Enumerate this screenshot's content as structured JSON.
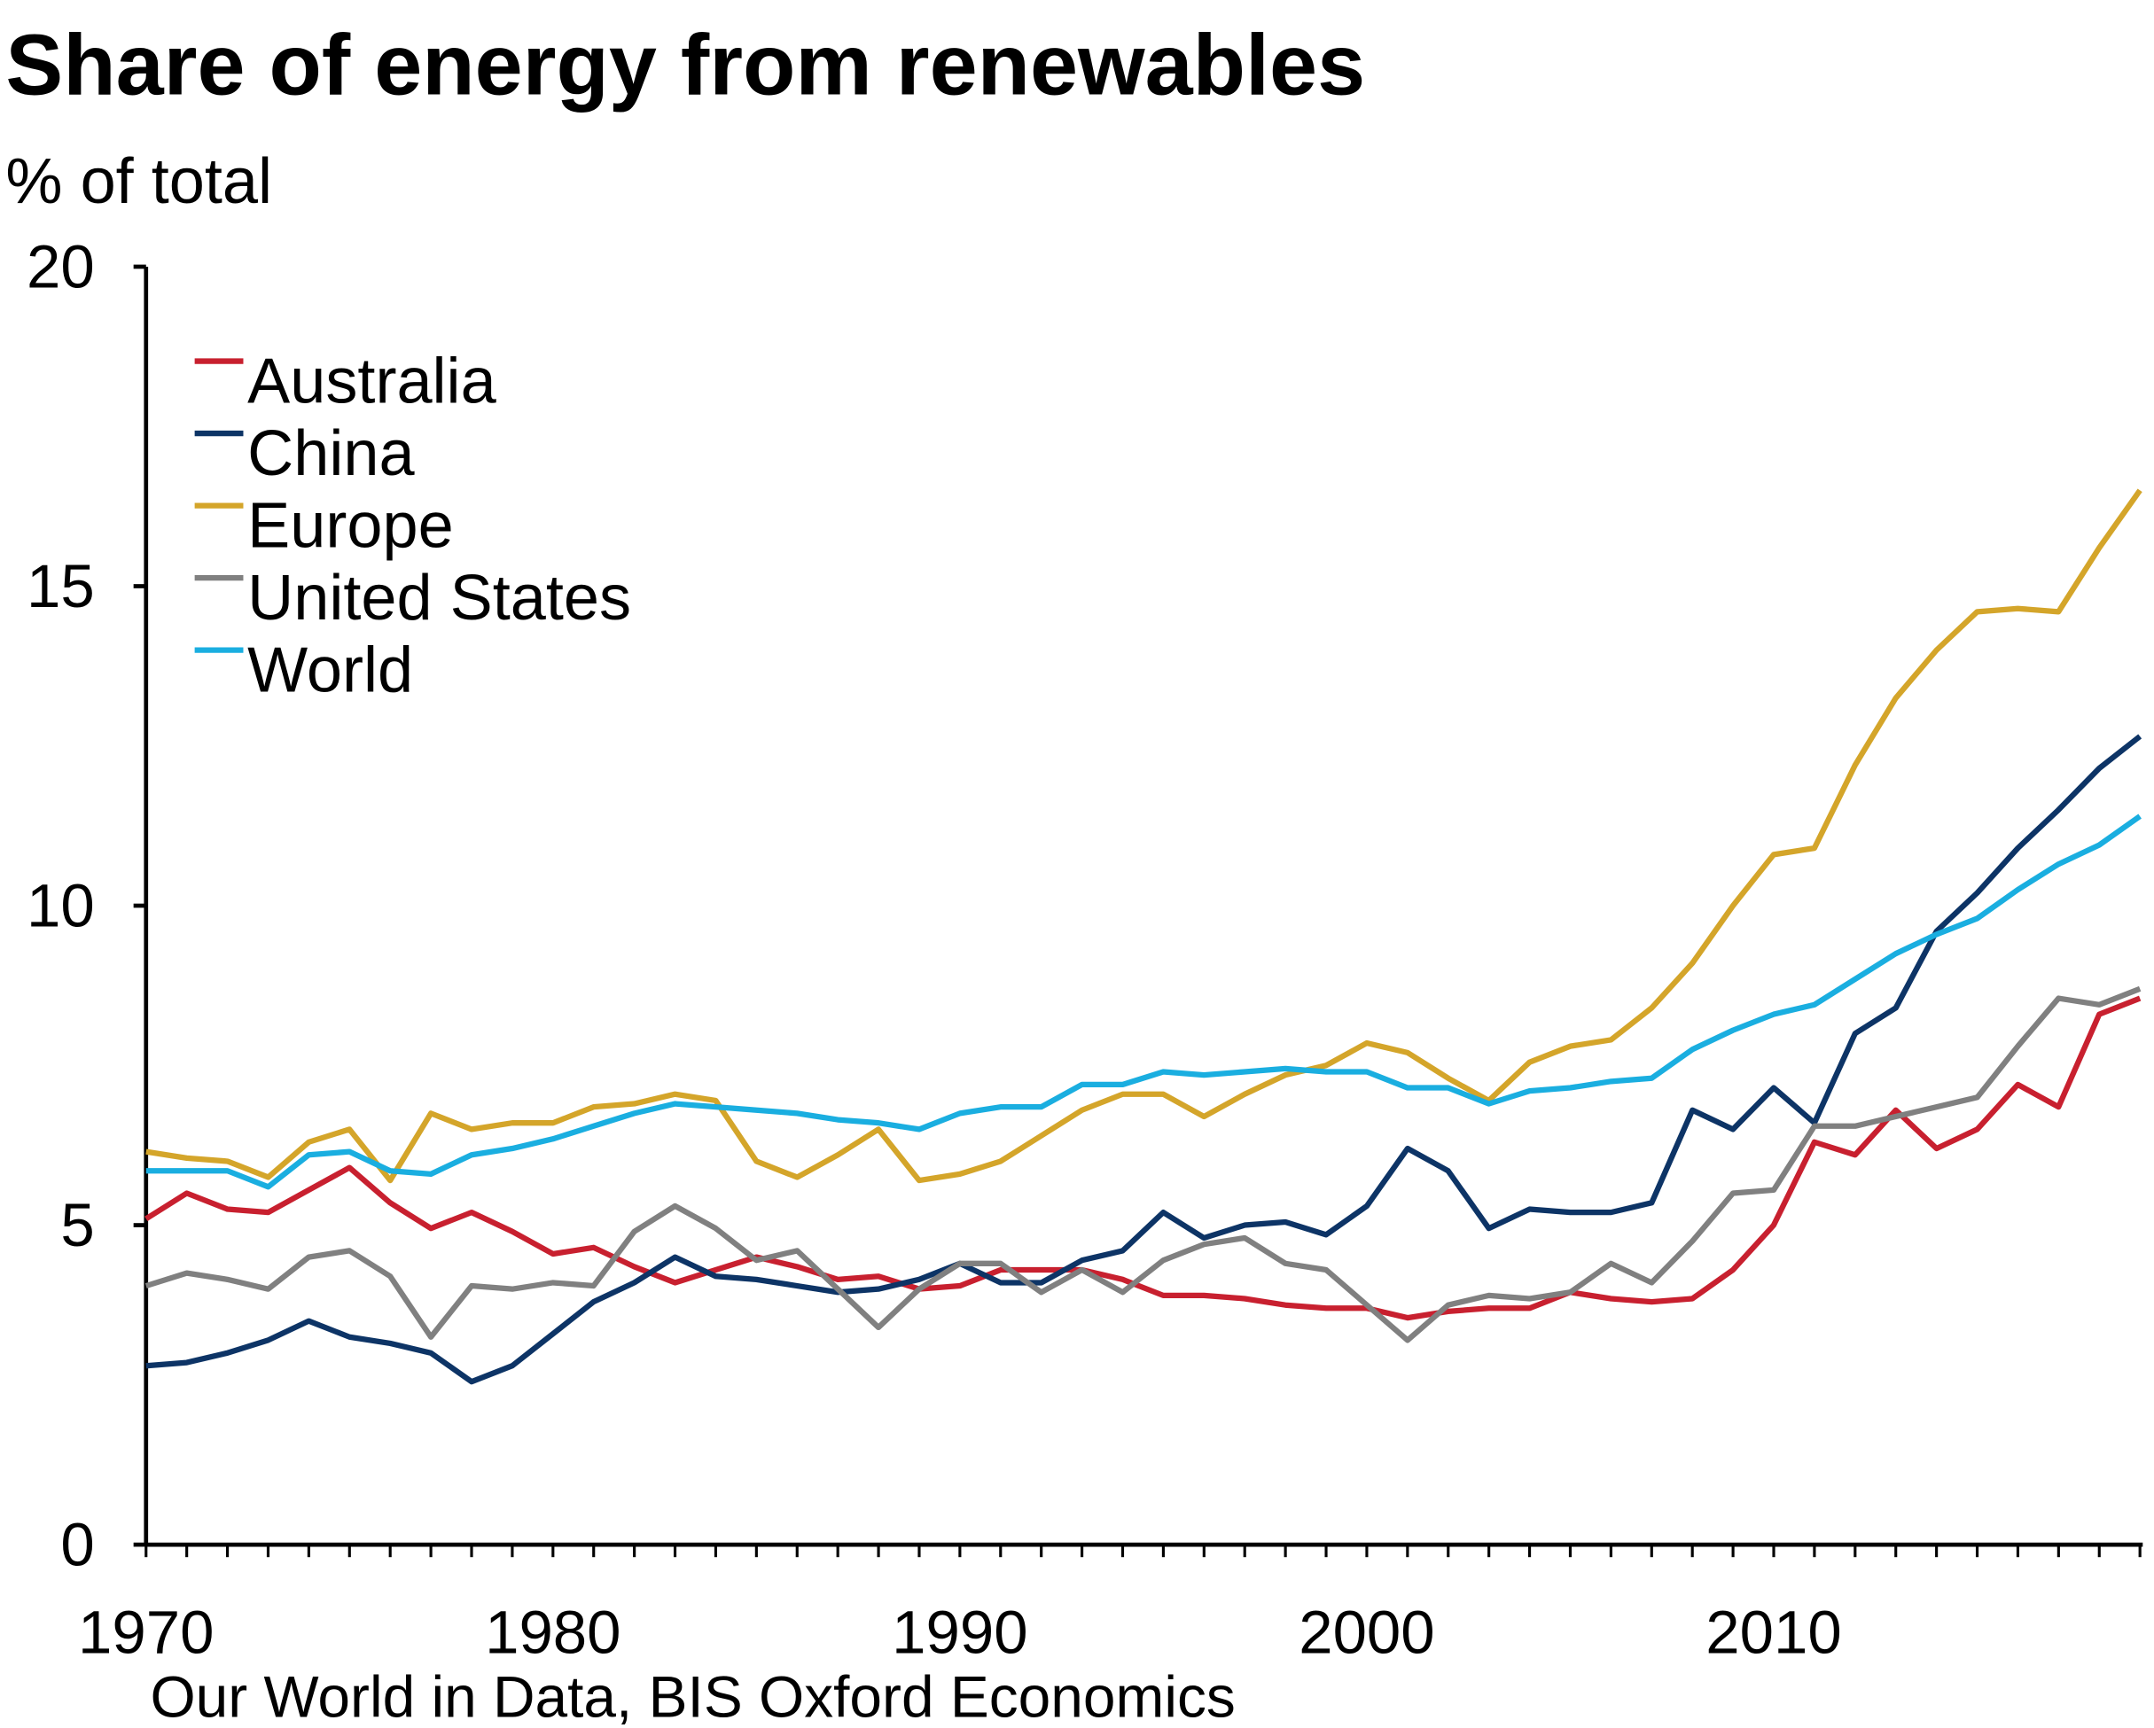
{
  "chart_data": {
    "type": "line",
    "title": "Share of energy from renewables",
    "ylabel": "% of total",
    "source": "Our World in Data, BIS Oxford Economics",
    "xlim": [
      1970,
      2019
    ],
    "ylim": [
      0,
      20
    ],
    "x_ticks": [
      "1970",
      "1980",
      "1990",
      "2000",
      "2010"
    ],
    "y_ticks": [
      "0",
      "5",
      "10",
      "15",
      "20"
    ],
    "grid": false,
    "legend_position": "top-left",
    "x_start": 1970,
    "series": [
      {
        "name": "Australia",
        "color": "#c8202f",
        "values": [
          5.1,
          5.5,
          5.25,
          5.2,
          5.55,
          5.9,
          5.35,
          4.95,
          5.2,
          4.9,
          4.55,
          4.65,
          4.35,
          4.1,
          4.3,
          4.5,
          4.35,
          4.15,
          4.2,
          4.0,
          4.05,
          4.3,
          4.3,
          4.3,
          4.15,
          3.9,
          3.9,
          3.85,
          3.75,
          3.7,
          3.7,
          3.55,
          3.65,
          3.7,
          3.7,
          3.95,
          3.85,
          3.8,
          3.85,
          4.3,
          5.0,
          6.3,
          6.1,
          6.8,
          6.2,
          6.5,
          7.2,
          6.85,
          8.3,
          8.55
        ]
      },
      {
        "name": "China",
        "color": "#0d3466",
        "values": [
          2.8,
          2.85,
          3.0,
          3.2,
          3.5,
          3.25,
          3.15,
          3.0,
          2.55,
          2.8,
          3.3,
          3.8,
          4.1,
          4.5,
          4.2,
          4.15,
          4.05,
          3.95,
          4.0,
          4.15,
          4.4,
          4.1,
          4.1,
          4.45,
          4.6,
          5.2,
          4.8,
          5.0,
          5.05,
          4.85,
          5.3,
          6.2,
          5.85,
          4.95,
          5.25,
          5.2,
          5.2,
          5.35,
          6.8,
          6.5,
          7.15,
          6.6,
          8.0,
          8.4,
          9.6,
          10.2,
          10.9,
          11.5,
          12.15,
          12.65
        ]
      },
      {
        "name": "Europe",
        "color": "#d4a52a",
        "values": [
          6.15,
          6.05,
          6.0,
          5.75,
          6.3,
          6.5,
          5.7,
          6.75,
          6.5,
          6.6,
          6.6,
          6.85,
          6.9,
          7.05,
          6.95,
          6.0,
          5.75,
          6.1,
          6.5,
          5.7,
          5.8,
          6.0,
          6.4,
          6.8,
          7.05,
          7.05,
          6.7,
          7.05,
          7.35,
          7.5,
          7.85,
          7.7,
          7.3,
          6.95,
          7.55,
          7.8,
          7.9,
          8.4,
          9.1,
          10.0,
          10.8,
          10.9,
          12.2,
          13.25,
          14.0,
          14.6,
          14.65,
          14.6,
          15.6,
          16.5
        ]
      },
      {
        "name": "United States",
        "color": "#808080",
        "values": [
          4.05,
          4.25,
          4.15,
          4.0,
          4.5,
          4.6,
          4.2,
          3.25,
          4.05,
          4.0,
          4.1,
          4.05,
          4.9,
          5.3,
          4.95,
          4.45,
          4.6,
          4.0,
          3.4,
          4.0,
          4.4,
          4.4,
          3.95,
          4.3,
          3.95,
          4.45,
          4.7,
          4.8,
          4.4,
          4.3,
          3.75,
          3.2,
          3.75,
          3.9,
          3.85,
          3.95,
          4.4,
          4.1,
          4.75,
          5.5,
          5.55,
          6.55,
          6.55,
          6.7,
          6.85,
          7.0,
          7.8,
          8.55,
          8.45,
          8.7
        ]
      },
      {
        "name": "World",
        "color": "#1aaee0",
        "values": [
          5.85,
          5.85,
          5.85,
          5.6,
          6.1,
          6.15,
          5.85,
          5.8,
          6.1,
          6.2,
          6.35,
          6.55,
          6.75,
          6.9,
          6.85,
          6.8,
          6.75,
          6.65,
          6.6,
          6.5,
          6.75,
          6.85,
          6.85,
          7.2,
          7.2,
          7.4,
          7.35,
          7.4,
          7.45,
          7.4,
          7.4,
          7.15,
          7.15,
          6.9,
          7.1,
          7.15,
          7.25,
          7.3,
          7.75,
          8.05,
          8.3,
          8.45,
          8.85,
          9.25,
          9.55,
          9.8,
          10.25,
          10.65,
          10.95,
          11.4
        ]
      }
    ]
  }
}
